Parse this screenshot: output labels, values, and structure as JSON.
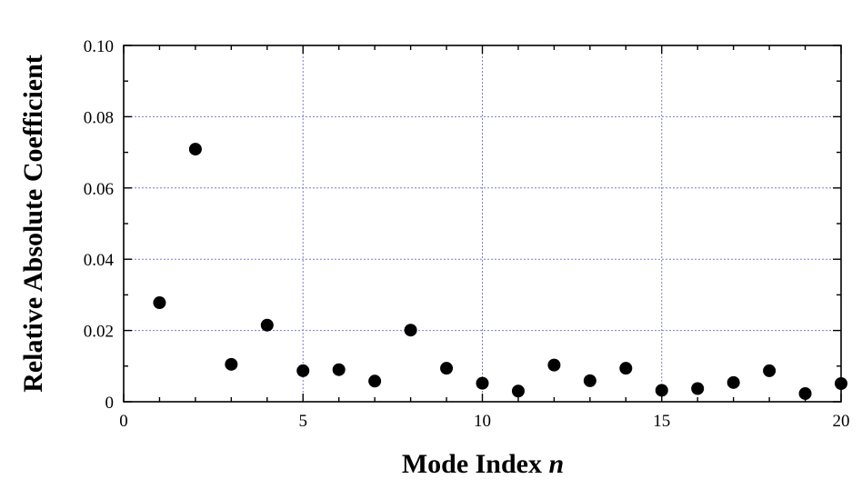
{
  "chart_data": {
    "type": "scatter",
    "title": "",
    "xlabel": "Mode Index",
    "xlabel_var": "n",
    "ylabel": "Relative Absolute Coefficient",
    "xlim": [
      0,
      20
    ],
    "ylim": [
      0,
      0.1
    ],
    "x_ticks": [
      0,
      5,
      10,
      15,
      20
    ],
    "x_tick_labels": [
      "0",
      "5",
      "10",
      "15",
      "20"
    ],
    "y_ticks": [
      0,
      0.02,
      0.04,
      0.06,
      0.08,
      0.1
    ],
    "y_tick_labels": [
      "0",
      "0.02",
      "0.04",
      "0.06",
      "0.08",
      "0.10"
    ],
    "grid": true,
    "grid_color": "#7b7bd6",
    "marker_color": "#000000",
    "series": [
      {
        "x": [
          1,
          2,
          3,
          4,
          5,
          6,
          7,
          8,
          9,
          10,
          11,
          12,
          13,
          14,
          15,
          16,
          17,
          18,
          19,
          20
        ],
        "y": [
          0.0278,
          0.0709,
          0.0105,
          0.0215,
          0.0087,
          0.009,
          0.0058,
          0.0201,
          0.0094,
          0.0052,
          0.003,
          0.0103,
          0.0059,
          0.0094,
          0.0032,
          0.0037,
          0.0054,
          0.0087,
          0.0023,
          0.0051
        ]
      }
    ]
  }
}
